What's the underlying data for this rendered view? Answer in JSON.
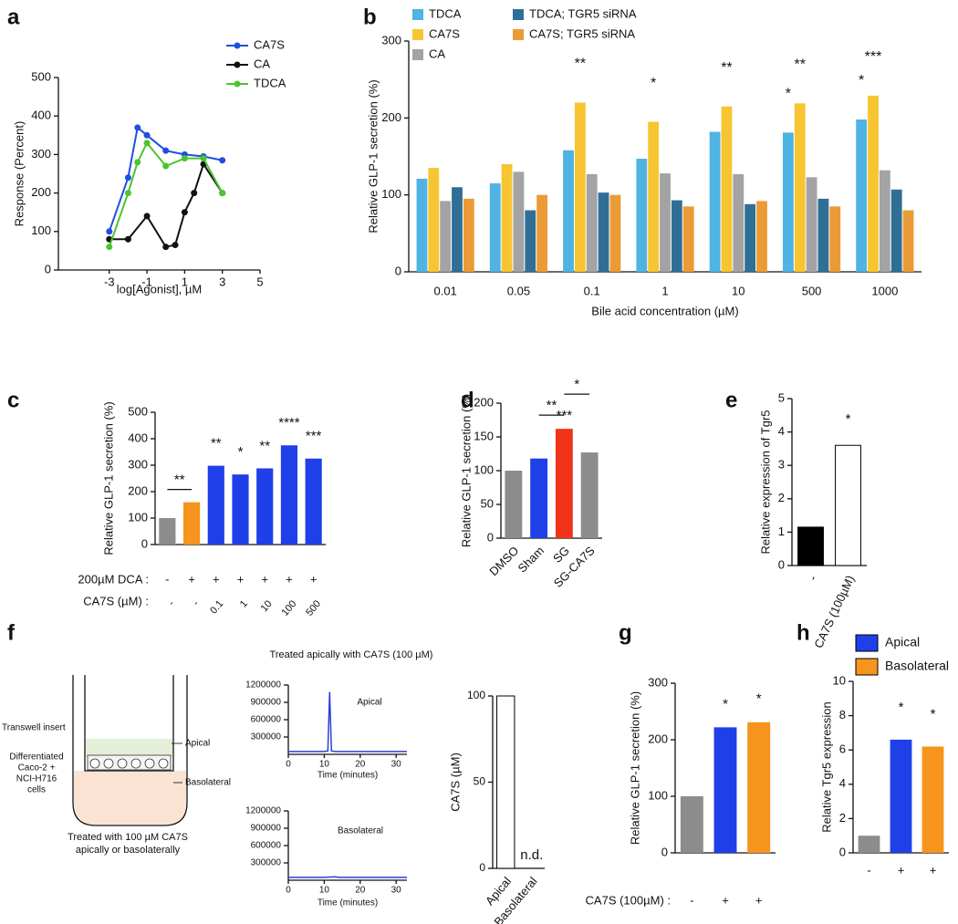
{
  "diagram": {
    "insert_label": "Transwell insert",
    "apical_label": "Apical",
    "cells_label": [
      "Differentiated",
      "Caco-2 +",
      "NCI-H716",
      "cells"
    ],
    "basolateral_label": "Basolateral",
    "caption": [
      "Treated with 100 µM CA7S",
      "apically or basolaterally"
    ]
  },
  "chart_data": [
    {
      "panel": "a",
      "type": "line",
      "markers": true,
      "y_label": "Response (Percent)",
      "x_label": "log[Agonist], µM",
      "xlim": [
        -5.7,
        5
      ],
      "xticks": [
        -3,
        -1,
        1,
        3,
        5
      ],
      "ylim": [
        0,
        500
      ],
      "yticks": [
        0,
        100,
        200,
        300,
        400,
        500
      ],
      "legend": "upper right",
      "series": [
        {
          "name": "CA7S",
          "color": "#1f4fe0",
          "x": [
            -3,
            -2,
            -1.5,
            -1,
            0,
            1,
            2,
            3
          ],
          "values": [
            100,
            240,
            370,
            350,
            310,
            300,
            295,
            285
          ]
        },
        {
          "name": "CA",
          "color": "#111111",
          "x": [
            -3,
            -2,
            -1,
            0,
            0.5,
            1,
            1.5,
            2,
            3
          ],
          "values": [
            80,
            80,
            140,
            60,
            65,
            150,
            200,
            275,
            200
          ]
        },
        {
          "name": "TDCA",
          "color": "#4cc430",
          "x": [
            -3,
            -2,
            -1.5,
            -1,
            0,
            1,
            2,
            3
          ],
          "values": [
            60,
            200,
            280,
            330,
            270,
            290,
            290,
            200
          ]
        }
      ]
    },
    {
      "panel": "b",
      "type": "grouped_bar",
      "y_label": "Relative GLP-1 secretion (%)",
      "x_label": "Bile acid concentration (µM)",
      "categories": [
        "0.01",
        "0.05",
        "0.1",
        "1",
        "10",
        "500",
        "1000"
      ],
      "ylim": [
        0,
        300
      ],
      "yticks": [
        0,
        100,
        200,
        300
      ],
      "legend": "top",
      "series": [
        {
          "name": "TDCA",
          "color": "#4fb3e3",
          "values": [
            121,
            115,
            158,
            147,
            182,
            181,
            198
          ]
        },
        {
          "name": "CA7S",
          "color": "#f7c531",
          "values": [
            135,
            140,
            220,
            195,
            215,
            219,
            229
          ]
        },
        {
          "name": "CA",
          "color": "#a3a3a3",
          "values": [
            92,
            130,
            127,
            128,
            127,
            123,
            132
          ]
        },
        {
          "name": "TDCA; TGR5 siRNA",
          "color": "#2f6f96",
          "values": [
            110,
            80,
            103,
            93,
            88,
            95,
            107
          ]
        },
        {
          "name": "CA7S; TGR5 siRNA",
          "color": "#eb9b35",
          "values": [
            95,
            100,
            100,
            85,
            92,
            85,
            80
          ]
        }
      ],
      "annotations": [
        {
          "text": "**",
          "category": 2,
          "series": 1
        },
        {
          "text": "*",
          "category": 3,
          "series": 1
        },
        {
          "text": "**",
          "category": 4,
          "series": 1
        },
        {
          "text": "*",
          "category": 5,
          "series": 0
        },
        {
          "text": "**",
          "category": 5,
          "series": 1
        },
        {
          "text": "*",
          "category": 6,
          "series": 0
        },
        {
          "text": "***",
          "category": 6,
          "series": 1
        }
      ]
    },
    {
      "panel": "c",
      "type": "bar",
      "y_label": "Relative GLP-1 secretion (%)",
      "ylim": [
        0,
        500
      ],
      "yticks": [
        0,
        100,
        200,
        300,
        400,
        500
      ],
      "values": [
        100,
        160,
        298,
        265,
        288,
        375,
        325
      ],
      "colors": [
        "#8c8c8c",
        "#f7941d",
        "#1f3fe8",
        "#1f3fe8",
        "#1f3fe8",
        "#1f3fe8",
        "#1f3fe8"
      ],
      "rows": [
        {
          "label": "200µM DCA :",
          "cells": [
            "-",
            "+",
            "+",
            "+",
            "+",
            "+",
            "+"
          ]
        },
        {
          "label": "CA7S (µM) :",
          "cells": [
            "-",
            "-",
            "0.1",
            "1",
            "10",
            "100",
            "500"
          ]
        }
      ],
      "annotations": [
        {
          "text": "**",
          "index": 2
        },
        {
          "text": "*",
          "index": 3
        },
        {
          "text": "**",
          "index": 4
        },
        {
          "text": "****",
          "index": 5
        },
        {
          "text": "***",
          "index": 6
        }
      ],
      "brackets": [
        {
          "text": "**",
          "from": 0,
          "to": 1
        }
      ]
    },
    {
      "panel": "d",
      "type": "bar",
      "y_label": "Relative GLP-1 secretion (%)",
      "ylim": [
        0,
        200
      ],
      "yticks": [
        0,
        50,
        100,
        150,
        200
      ],
      "categories": [
        "DMSO",
        "Sham",
        "SG",
        "SG-CA7S"
      ],
      "values": [
        100,
        118,
        162,
        127
      ],
      "colors": [
        "#8c8c8c",
        "#1f3fe8",
        "#f2341a",
        "#8c8c8c"
      ],
      "annotations": [
        {
          "text": "***",
          "index": 2
        }
      ],
      "brackets": [
        {
          "text": "**",
          "from": 1,
          "to": 2
        },
        {
          "text": "*",
          "from": 2,
          "to": 3
        }
      ]
    },
    {
      "panel": "e",
      "type": "bar",
      "y_label": "Relative expression of Tgr5",
      "ylim": [
        0,
        5
      ],
      "yticks": [
        0,
        1,
        2,
        3,
        4,
        5
      ],
      "categories": [
        "-",
        "CA7S (100µM)"
      ],
      "values": [
        1.15,
        3.6
      ],
      "colors": [
        "#000000",
        "#ffffff"
      ],
      "annotations": [
        {
          "text": "*",
          "index": 1
        }
      ]
    },
    {
      "panel": "f",
      "type": "line",
      "title": "Treated apically with CA7S (100 µM)",
      "label": "Apical",
      "x_label": "Time (minutes)",
      "xlim": [
        0,
        33
      ],
      "xticks": [
        0,
        10,
        20,
        30
      ],
      "ylim": [
        0,
        1200000
      ],
      "yticks": [
        300000,
        600000,
        900000,
        1200000
      ],
      "series": [
        {
          "name": "Apical",
          "color": "#2b3fd6",
          "x": [
            0,
            5,
            10,
            11,
            11.5,
            12,
            13,
            20,
            30,
            33
          ],
          "values": [
            50000,
            50000,
            50000,
            60000,
            1080000,
            60000,
            50000,
            50000,
            50000,
            50000
          ]
        }
      ]
    },
    {
      "type": "line",
      "label": "Basolateral",
      "x_label": "Time (minutes)",
      "xlim": [
        0,
        33
      ],
      "xticks": [
        0,
        10,
        20,
        30
      ],
      "ylim": [
        0,
        1200000
      ],
      "yticks": [
        300000,
        600000,
        900000,
        1200000
      ],
      "series": [
        {
          "name": "Basolateral",
          "color": "#2b3fd6",
          "x": [
            0,
            10,
            13,
            14,
            20,
            33
          ],
          "values": [
            50000,
            50000,
            60000,
            50000,
            50000,
            50000
          ]
        }
      ]
    },
    {
      "type": "bar",
      "y_label": "CA7S (µM)",
      "ylim": [
        0,
        100
      ],
      "yticks": [
        0,
        50,
        100
      ],
      "categories": [
        "Apical",
        "Basolateral"
      ],
      "values": [
        100,
        0
      ],
      "colors": [
        "#ffffff",
        "#ffffff"
      ],
      "annotations": [
        {
          "text": "n.d.",
          "index": 1
        }
      ]
    },
    {
      "panel": "g",
      "type": "bar",
      "y_label": "Relative GLP-1 secretion (%)",
      "ylim": [
        0,
        300
      ],
      "yticks": [
        0,
        100,
        200,
        300
      ],
      "values": [
        100,
        222,
        231
      ],
      "colors": [
        "#8c8c8c",
        "#1f3fe8",
        "#f7941d"
      ],
      "rows": [
        {
          "label": "CA7S (100µM) :",
          "cells": [
            "-",
            "+",
            "+"
          ]
        }
      ],
      "annotations": [
        {
          "text": "*",
          "index": 1
        },
        {
          "text": "*",
          "index": 2
        }
      ]
    },
    {
      "panel": "h",
      "type": "bar",
      "y_label": "Relative Tgr5 expression",
      "ylim": [
        0,
        10
      ],
      "yticks": [
        0,
        2,
        4,
        6,
        8,
        10
      ],
      "categories": [
        "-",
        "+",
        "+"
      ],
      "values": [
        1,
        6.6,
        6.2
      ],
      "colors": [
        "#8c8c8c",
        "#1f3fe8",
        "#f7941d"
      ],
      "legend_entries": [
        {
          "name": "Apical",
          "color": "#1f3fe8"
        },
        {
          "name": "Basolateral",
          "color": "#f7941d"
        }
      ],
      "annotations": [
        {
          "text": "*",
          "index": 1
        },
        {
          "text": "*",
          "index": 2
        }
      ]
    }
  ]
}
